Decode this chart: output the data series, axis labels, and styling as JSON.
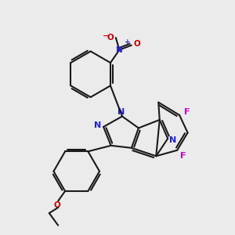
{
  "bg_color": "#ebebeb",
  "bond_color": "#1a1a1a",
  "N_color": "#2020ee",
  "O_color": "#cc0000",
  "F_color": "#cc00cc",
  "lw": 1.5,
  "fs": 7.5,
  "xlim": [
    0,
    10
  ],
  "ylim": [
    0,
    10
  ]
}
